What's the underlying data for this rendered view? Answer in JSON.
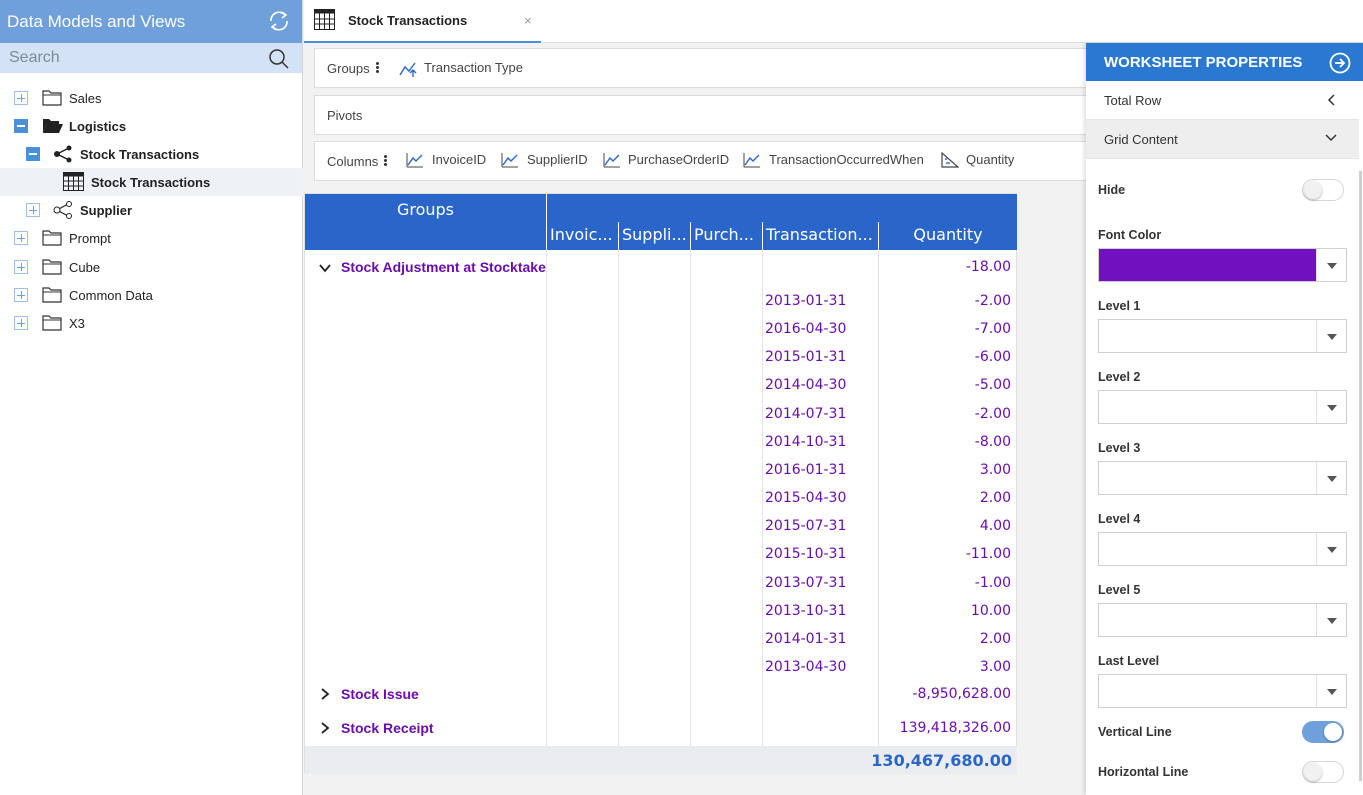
{
  "sidebar": {
    "title": "Data Models and Views",
    "search_placeholder": "Search",
    "items": [
      {
        "label": "Sales",
        "icon": "folder-icon",
        "expander": "plus"
      },
      {
        "label": "Logistics",
        "icon": "folder-open-icon",
        "expander": "minus"
      },
      {
        "label": "Stock Transactions",
        "icon": "model-icon",
        "expander": "minus"
      },
      {
        "label": "Stock Transactions",
        "icon": "grid-view-icon",
        "expander": "none"
      },
      {
        "label": "Supplier",
        "icon": "model-icon",
        "expander": "plus"
      },
      {
        "label": "Prompt",
        "icon": "folder-icon",
        "expander": "plus"
      },
      {
        "label": "Cube",
        "icon": "folder-icon",
        "expander": "plus"
      },
      {
        "label": "Common Data",
        "icon": "folder-icon",
        "expander": "plus"
      },
      {
        "label": "X3",
        "icon": "folder-icon",
        "expander": "plus"
      }
    ]
  },
  "tab": {
    "title": "Stock Transactions",
    "close": "×"
  },
  "shelves": {
    "groups": {
      "label": "Groups",
      "fields": [
        "Transaction Type"
      ]
    },
    "pivots": {
      "label": "Pivots"
    },
    "columns": {
      "label": "Columns",
      "fields": [
        "InvoiceID",
        "SupplierID",
        "PurchaseOrderID",
        "TransactionOccurredWhen",
        "Quantity"
      ]
    }
  },
  "grid": {
    "groups_header": "Groups",
    "columns": [
      "Invoic...",
      "Suppli...",
      "Purch...",
      "Transaction...",
      "Quantity"
    ],
    "groups": [
      {
        "label": "Stock Adjustment at Stocktake",
        "expanded": true,
        "subtotal": "-18.00",
        "rows": [
          {
            "date": "2013-01-31",
            "qty": "-2.00"
          },
          {
            "date": "2016-04-30",
            "qty": "-7.00"
          },
          {
            "date": "2015-01-31",
            "qty": "-6.00"
          },
          {
            "date": "2014-04-30",
            "qty": "-5.00"
          },
          {
            "date": "2014-07-31",
            "qty": "-2.00"
          },
          {
            "date": "2014-10-31",
            "qty": "-8.00"
          },
          {
            "date": "2016-01-31",
            "qty": "3.00"
          },
          {
            "date": "2015-04-30",
            "qty": "2.00"
          },
          {
            "date": "2015-07-31",
            "qty": "4.00"
          },
          {
            "date": "2015-10-31",
            "qty": "-11.00"
          },
          {
            "date": "2013-07-31",
            "qty": "-1.00"
          },
          {
            "date": "2013-10-31",
            "qty": "10.00"
          },
          {
            "date": "2014-01-31",
            "qty": "2.00"
          },
          {
            "date": "2013-04-30",
            "qty": "3.00"
          }
        ]
      },
      {
        "label": "Stock Issue",
        "expanded": false,
        "subtotal": "-8,950,628.00"
      },
      {
        "label": "Stock Receipt",
        "expanded": false,
        "subtotal": "139,418,326.00"
      }
    ],
    "total": "130,467,680.00"
  },
  "properties": {
    "title": "WORKSHEET PROPERTIES",
    "sections": [
      "Total Row",
      "Grid Content"
    ],
    "hide_label": "Hide",
    "hide_on": false,
    "font_color_label": "Font Color",
    "font_color": "#7010bf",
    "levels": [
      "Level 1",
      "Level 2",
      "Level 3",
      "Level 4",
      "Level 5",
      "Last Level"
    ],
    "vertical_line_label": "Vertical Line",
    "vertical_line_on": true,
    "horizontal_line_label": "Horizontal Line",
    "horizontal_line_on": false
  },
  "colors": {
    "accent": "#2a66c9",
    "sidebar_header": "#6fa0d9",
    "group_text": "#6a0dad"
  }
}
